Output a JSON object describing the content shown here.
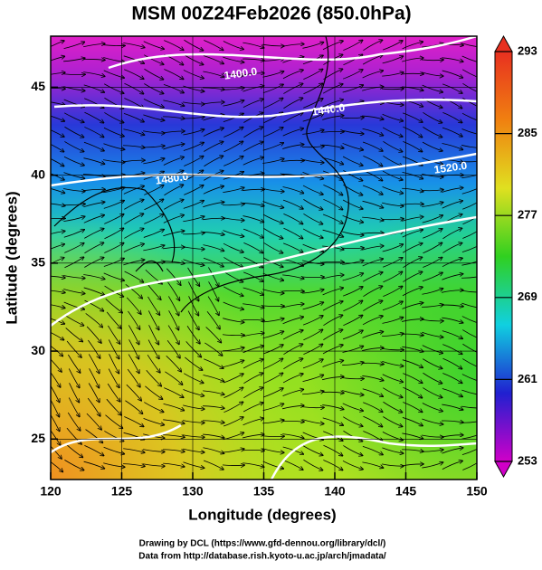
{
  "chart_data": {
    "type": "map",
    "title": "MSM 00Z24Feb2026 (850.0hPa)",
    "xlabel": "Longitude (degrees)",
    "ylabel": "Latitude  (degrees)",
    "xlim": [
      120,
      150
    ],
    "xticks": [
      120,
      125,
      130,
      135,
      140,
      145,
      150
    ],
    "ylim": [
      22.7,
      47.9
    ],
    "yticks": [
      25,
      30,
      35,
      40,
      45
    ],
    "grid": true,
    "colorbar": {
      "lim": [
        253,
        293
      ],
      "ticks": [
        253,
        261,
        269,
        277,
        285,
        293
      ],
      "colors": [
        "#d000c8",
        "#2020d0",
        "#10d0e0",
        "#30d020",
        "#e0e020",
        "#f08010",
        "#e83020"
      ]
    },
    "contour_labels": [
      "1400.0",
      "1440.0",
      "1480.0",
      "1520.0"
    ],
    "credits": [
      "Drawing by DCL (https://www.gfd-dennou.org/library/dcl/)",
      "Data from http://database.rish.kyoto-u.ac.jp/arch/jmadata/"
    ]
  }
}
